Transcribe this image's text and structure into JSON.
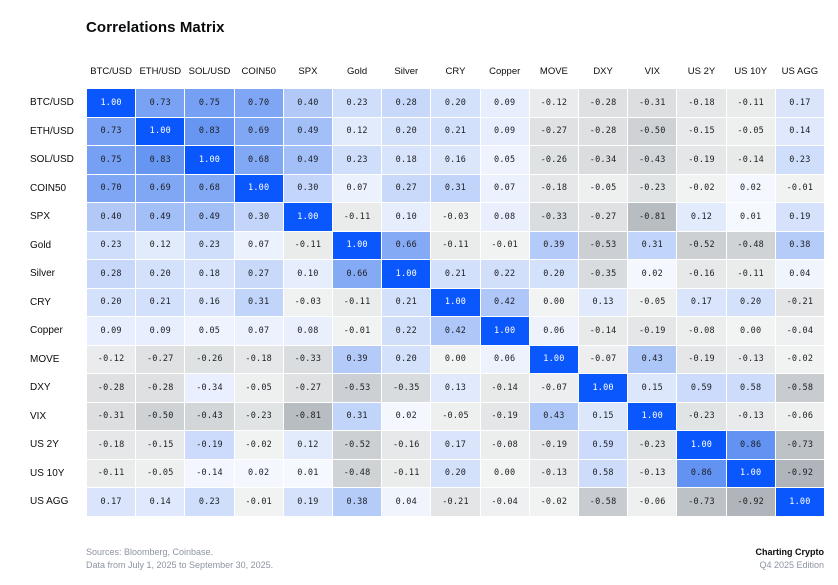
{
  "title": "Correlations Matrix",
  "colors": {
    "diagonal_blue": "#0b57fe",
    "positive_light": "#f7f9fe",
    "positive_strong": "#4a82f0",
    "negative_light": "#f2f3f3",
    "negative_strong": "#aab0b6",
    "cell_text": "#1c1e23",
    "diagonal_text": "#ffffff",
    "muted_text": "#8d94a1",
    "title_text": "#0a0b0d"
  },
  "chart_data": {
    "type": "heatmap",
    "title": "Correlations Matrix",
    "categories": [
      "BTC/USD",
      "ETH/USD",
      "SOL/USD",
      "COIN50",
      "SPX",
      "Gold",
      "Silver",
      "CRY",
      "Copper",
      "MOVE",
      "DXY",
      "VIX",
      "US 2Y",
      "US 10Y",
      "US AGG"
    ],
    "value_range": [
      -1,
      1
    ],
    "legend": "none",
    "matrix": [
      [
        1.0,
        0.73,
        0.75,
        0.7,
        0.4,
        0.23,
        0.28,
        0.2,
        0.09,
        -0.12,
        -0.28,
        -0.31,
        -0.18,
        -0.11,
        0.17
      ],
      [
        0.73,
        1.0,
        0.83,
        0.69,
        0.49,
        0.12,
        0.2,
        0.21,
        0.09,
        -0.27,
        -0.28,
        -0.5,
        -0.15,
        -0.05,
        0.14
      ],
      [
        0.75,
        0.83,
        1.0,
        0.68,
        0.49,
        0.23,
        0.18,
        0.16,
        0.05,
        -0.26,
        -0.34,
        -0.43,
        -0.19,
        -0.14,
        0.23
      ],
      [
        0.7,
        0.69,
        0.68,
        1.0,
        0.3,
        0.07,
        0.27,
        0.31,
        0.07,
        -0.18,
        -0.05,
        -0.23,
        -0.02,
        0.02,
        -0.01
      ],
      [
        0.4,
        0.49,
        0.49,
        0.3,
        1.0,
        -0.11,
        0.1,
        -0.03,
        0.08,
        -0.33,
        -0.27,
        -0.81,
        0.12,
        0.01,
        0.19
      ],
      [
        0.23,
        0.12,
        0.23,
        0.07,
        -0.11,
        1.0,
        0.66,
        -0.11,
        -0.01,
        0.39,
        -0.53,
        0.31,
        -0.52,
        -0.48,
        0.38
      ],
      [
        0.28,
        0.2,
        0.18,
        0.27,
        0.1,
        0.66,
        1.0,
        0.21,
        0.22,
        0.2,
        -0.35,
        0.02,
        -0.16,
        -0.11,
        0.04
      ],
      [
        0.2,
        0.21,
        0.16,
        0.31,
        -0.03,
        -0.11,
        0.21,
        1.0,
        0.42,
        0.0,
        0.13,
        -0.05,
        0.17,
        0.2,
        -0.21
      ],
      [
        0.09,
        0.09,
        0.05,
        0.07,
        0.08,
        -0.01,
        0.22,
        0.42,
        1.0,
        0.06,
        -0.14,
        -0.19,
        -0.08,
        0.0,
        -0.04
      ],
      [
        -0.12,
        -0.27,
        -0.26,
        -0.18,
        -0.33,
        0.39,
        0.2,
        0.0,
        0.06,
        1.0,
        -0.07,
        0.43,
        -0.19,
        -0.13,
        -0.02
      ],
      [
        -0.28,
        -0.28,
        -0.34,
        -0.05,
        -0.27,
        -0.53,
        -0.35,
        0.13,
        -0.14,
        -0.07,
        1.0,
        0.15,
        0.59,
        0.58,
        -0.58
      ],
      [
        -0.31,
        -0.5,
        -0.43,
        -0.23,
        -0.81,
        0.31,
        0.02,
        -0.05,
        -0.19,
        0.43,
        0.15,
        1.0,
        -0.23,
        -0.13,
        -0.06
      ],
      [
        -0.18,
        -0.15,
        -0.19,
        -0.02,
        0.12,
        -0.52,
        -0.16,
        0.17,
        -0.08,
        -0.19,
        0.59,
        -0.23,
        1.0,
        0.86,
        -0.73
      ],
      [
        -0.11,
        -0.05,
        -0.14,
        0.02,
        0.01,
        -0.48,
        -0.11,
        0.2,
        0.0,
        -0.13,
        0.58,
        -0.13,
        0.86,
        1.0,
        -0.92
      ],
      [
        0.17,
        0.14,
        0.23,
        -0.01,
        0.19,
        0.38,
        0.04,
        -0.21,
        -0.04,
        -0.02,
        -0.58,
        -0.06,
        -0.73,
        -0.92,
        1.0
      ]
    ],
    "color_overrides": [
      {
        "row": "DXY",
        "col": "SOL/USD",
        "color": "#e9effe"
      },
      {
        "row": "US 2Y",
        "col": "SOL/USD",
        "color": "#ccdbfb"
      },
      {
        "row": "US 10Y",
        "col": "SOL/USD",
        "color": "#f3f6fe"
      },
      {
        "row": "DXY",
        "col": "US 2Y",
        "color": "#ccdbfb"
      },
      {
        "row": "DXY",
        "col": "US 10Y",
        "color": "#cedcfb"
      },
      {
        "row": "US 2Y",
        "col": "DXY",
        "color": "#ccdbfb"
      },
      {
        "row": "US 10Y",
        "col": "DXY",
        "color": "#cedcfb"
      }
    ]
  },
  "footer": {
    "sources_line1": "Sources: Bloomberg, Coinbase.",
    "sources_line2": "Data from July 1, 2025 to September 30, 2025.",
    "brand_name": "Charting Crypto",
    "brand_edition": "Q4 2025 Edition"
  }
}
